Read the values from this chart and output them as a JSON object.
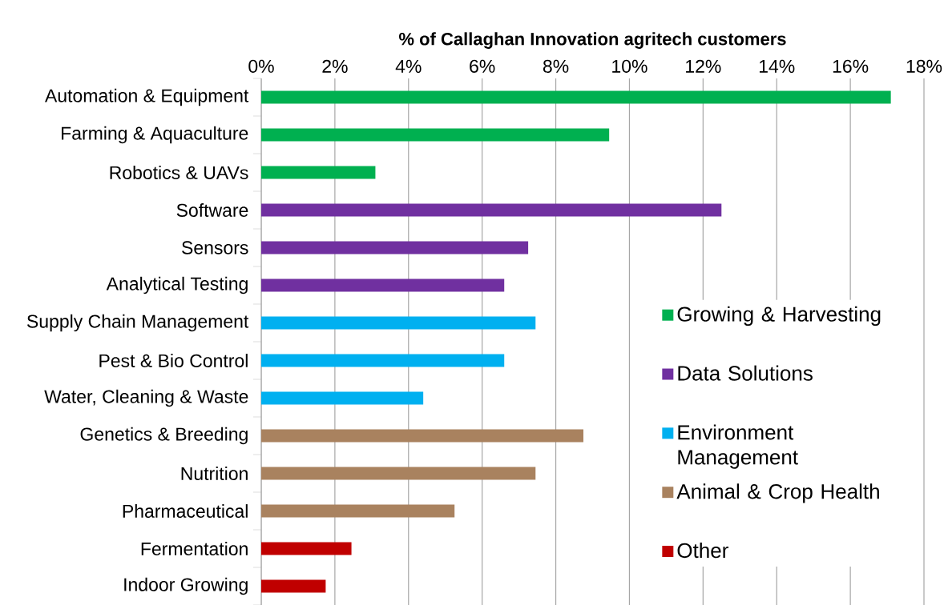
{
  "chart_data": {
    "type": "bar",
    "orientation": "horizontal",
    "xlabel": "% of Callaghan Innovation agritech customers",
    "categories": [
      "Automation & Equipment",
      "Farming & Aquaculture",
      "Robotics & UAVs",
      "Software",
      "Sensors",
      "Analytical Testing",
      "Supply Chain Management",
      "Pest & Bio Control",
      "Water, Cleaning & Waste",
      "Genetics & Breeding",
      "Nutrition",
      "Pharmaceutical",
      "Fermentation",
      "Indoor Growing"
    ],
    "series": [
      {
        "name": "Growing & Harvesting",
        "color": "#00b050",
        "values": [
          17.1,
          9.45,
          3.1,
          null,
          null,
          null,
          null,
          null,
          null,
          null,
          null,
          null,
          null,
          null
        ]
      },
      {
        "name": "Data Solutions",
        "color": "#7030a0",
        "values": [
          null,
          null,
          null,
          12.5,
          7.25,
          6.6,
          null,
          null,
          null,
          null,
          null,
          null,
          null,
          null
        ]
      },
      {
        "name": "Environment Management",
        "color": "#00b0f0",
        "values": [
          null,
          null,
          null,
          null,
          null,
          null,
          7.45,
          6.6,
          4.4,
          null,
          null,
          null,
          null,
          null
        ]
      },
      {
        "name": "Animal & Crop Health",
        "color": "#a9825f",
        "values": [
          null,
          null,
          null,
          null,
          null,
          null,
          null,
          null,
          null,
          8.75,
          7.45,
          5.25,
          null,
          null
        ]
      },
      {
        "name": "Other",
        "color": "#c00000",
        "values": [
          null,
          null,
          null,
          null,
          null,
          null,
          null,
          null,
          null,
          null,
          null,
          null,
          2.45,
          1.75
        ]
      }
    ],
    "xlim": [
      0,
      18
    ],
    "xticks": [
      {
        "value": 0,
        "label": "0%"
      },
      {
        "value": 2,
        "label": "2%"
      },
      {
        "value": 4,
        "label": "4%"
      },
      {
        "value": 6,
        "label": "6%"
      },
      {
        "value": 8,
        "label": "8%"
      },
      {
        "value": 10,
        "label": "10%"
      },
      {
        "value": 12,
        "label": "12%"
      },
      {
        "value": 14,
        "label": "14%"
      },
      {
        "value": 16,
        "label": "16%"
      },
      {
        "value": 18,
        "label": "18%"
      }
    ],
    "grid": "x",
    "legend": "right"
  }
}
